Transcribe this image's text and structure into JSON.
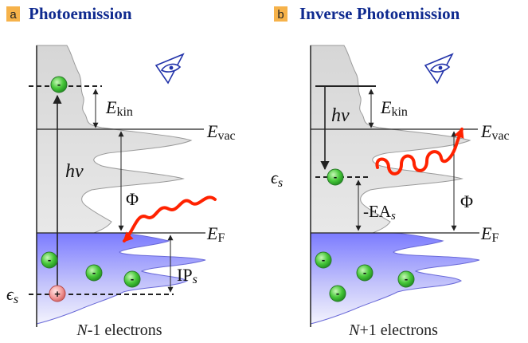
{
  "panel_a": {
    "letter": "a",
    "title": "Photoemission",
    "label_ekin_main": "E",
    "label_ekin_sub": "kin",
    "label_evac_main": "E",
    "label_evac_sub": "vac",
    "label_ef_main": "E",
    "label_ef_sub": "F",
    "label_hv": "hv",
    "label_phi": "Φ",
    "label_ip_main": "IP",
    "label_ip_sub": "s",
    "label_eps_main": "ϵ",
    "label_eps_sub": "s",
    "electron_sign": "-",
    "hole_sign": "+",
    "caption_n": "N",
    "caption_rest": "-1 electrons"
  },
  "panel_b": {
    "letter": "b",
    "title": "Inverse Photoemission",
    "label_ekin_main": "E",
    "label_ekin_sub": "kin",
    "label_evac_main": "E",
    "label_evac_sub": "vac",
    "label_ef_main": "E",
    "label_ef_sub": "F",
    "label_hv": "hv",
    "label_phi": "Φ",
    "label_ea_main": "-EA",
    "label_ea_sub": "s",
    "label_eps_main": "ϵ",
    "label_eps_sub": "s",
    "electron_sign": "-",
    "caption_n": "N",
    "caption_rest": "+1 electrons"
  },
  "colors": {
    "title": "#0f2a8f",
    "letter_bg": "#f6b24a",
    "photon": "#ff2200",
    "electron": "#33b833",
    "hole": "#f08080",
    "occupied": "#7f7fff"
  }
}
